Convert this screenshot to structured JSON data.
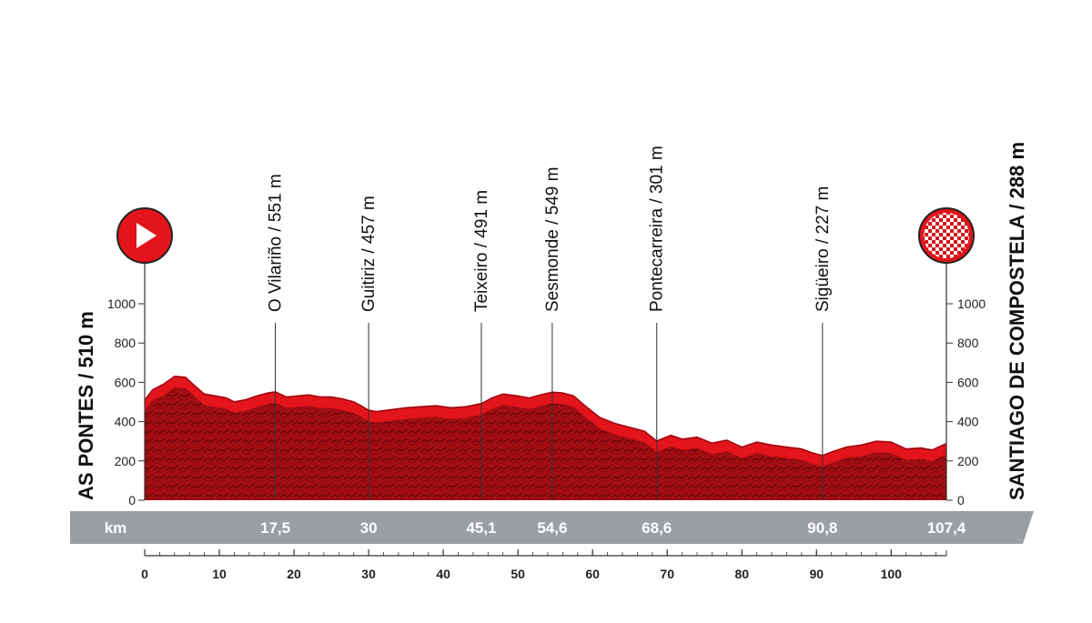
{
  "chart_data": {
    "type": "area",
    "title": "",
    "xlabel": "km",
    "ylabel": "",
    "xlim": [
      0,
      107.4
    ],
    "ylim": [
      0,
      1000
    ],
    "y_ticks": [
      0,
      200,
      400,
      600,
      800,
      1000
    ],
    "x_ticks": [
      0,
      10,
      20,
      30,
      40,
      50,
      60,
      70,
      80,
      90,
      100
    ],
    "grid": false,
    "fill_color": "#a80f14",
    "highlight_color": "#e3141b",
    "band_color": "#9b9fa3",
    "profile": {
      "x": [
        0,
        1,
        2.5,
        4,
        5.5,
        6.5,
        8,
        9.5,
        11,
        12,
        13.5,
        15,
        16.5,
        17.5,
        19,
        20.5,
        22,
        23.5,
        25,
        26.5,
        28,
        29,
        30,
        31,
        33,
        35,
        37,
        39,
        41,
        43,
        45.1,
        46.5,
        48,
        50,
        51.5,
        53,
        54.6,
        56,
        57.5,
        59,
        61,
        63,
        65,
        67,
        68.6,
        70.5,
        72,
        74,
        76,
        78,
        80,
        82,
        84,
        86,
        88,
        89.5,
        90.8,
        92,
        94,
        96,
        98,
        100,
        102,
        104,
        105.5,
        107.4
      ],
      "elevation": [
        510,
        560,
        590,
        630,
        625,
        590,
        540,
        530,
        520,
        500,
        510,
        530,
        545,
        551,
        525,
        530,
        535,
        525,
        525,
        515,
        500,
        480,
        457,
        450,
        460,
        470,
        475,
        480,
        470,
        475,
        491,
        520,
        540,
        530,
        520,
        535,
        549,
        545,
        530,
        480,
        420,
        390,
        370,
        350,
        301,
        330,
        310,
        320,
        290,
        305,
        270,
        295,
        280,
        270,
        260,
        240,
        227,
        245,
        270,
        280,
        300,
        295,
        260,
        265,
        255,
        288
      ]
    },
    "waypoints": [
      {
        "km": 0,
        "label": "AS PONTES / 510 m",
        "type": "start"
      },
      {
        "km": 17.5,
        "km_label": "17,5",
        "label": "O Vilariño / 551 m",
        "elevation": 551
      },
      {
        "km": 30,
        "km_label": "30",
        "label": "Guitiriz / 457 m",
        "elevation": 457
      },
      {
        "km": 45.1,
        "km_label": "45,1",
        "label": "Teixeiro / 491 m",
        "elevation": 491
      },
      {
        "km": 54.6,
        "km_label": "54,6",
        "label": "Sesmonde / 549 m",
        "elevation": 549
      },
      {
        "km": 68.6,
        "km_label": "68,6",
        "label": "Pontecarreira / 301 m",
        "elevation": 301
      },
      {
        "km": 90.8,
        "km_label": "90,8",
        "label": "Sigüeiro / 227 m",
        "elevation": 227
      },
      {
        "km": 107.4,
        "km_label": "107,4",
        "label": "SANTIAGO DE COMPOSTELA / 288 m",
        "type": "finish"
      }
    ]
  },
  "start_icon": "play-triangle-icon",
  "finish_icon": "checkered-flag-icon"
}
